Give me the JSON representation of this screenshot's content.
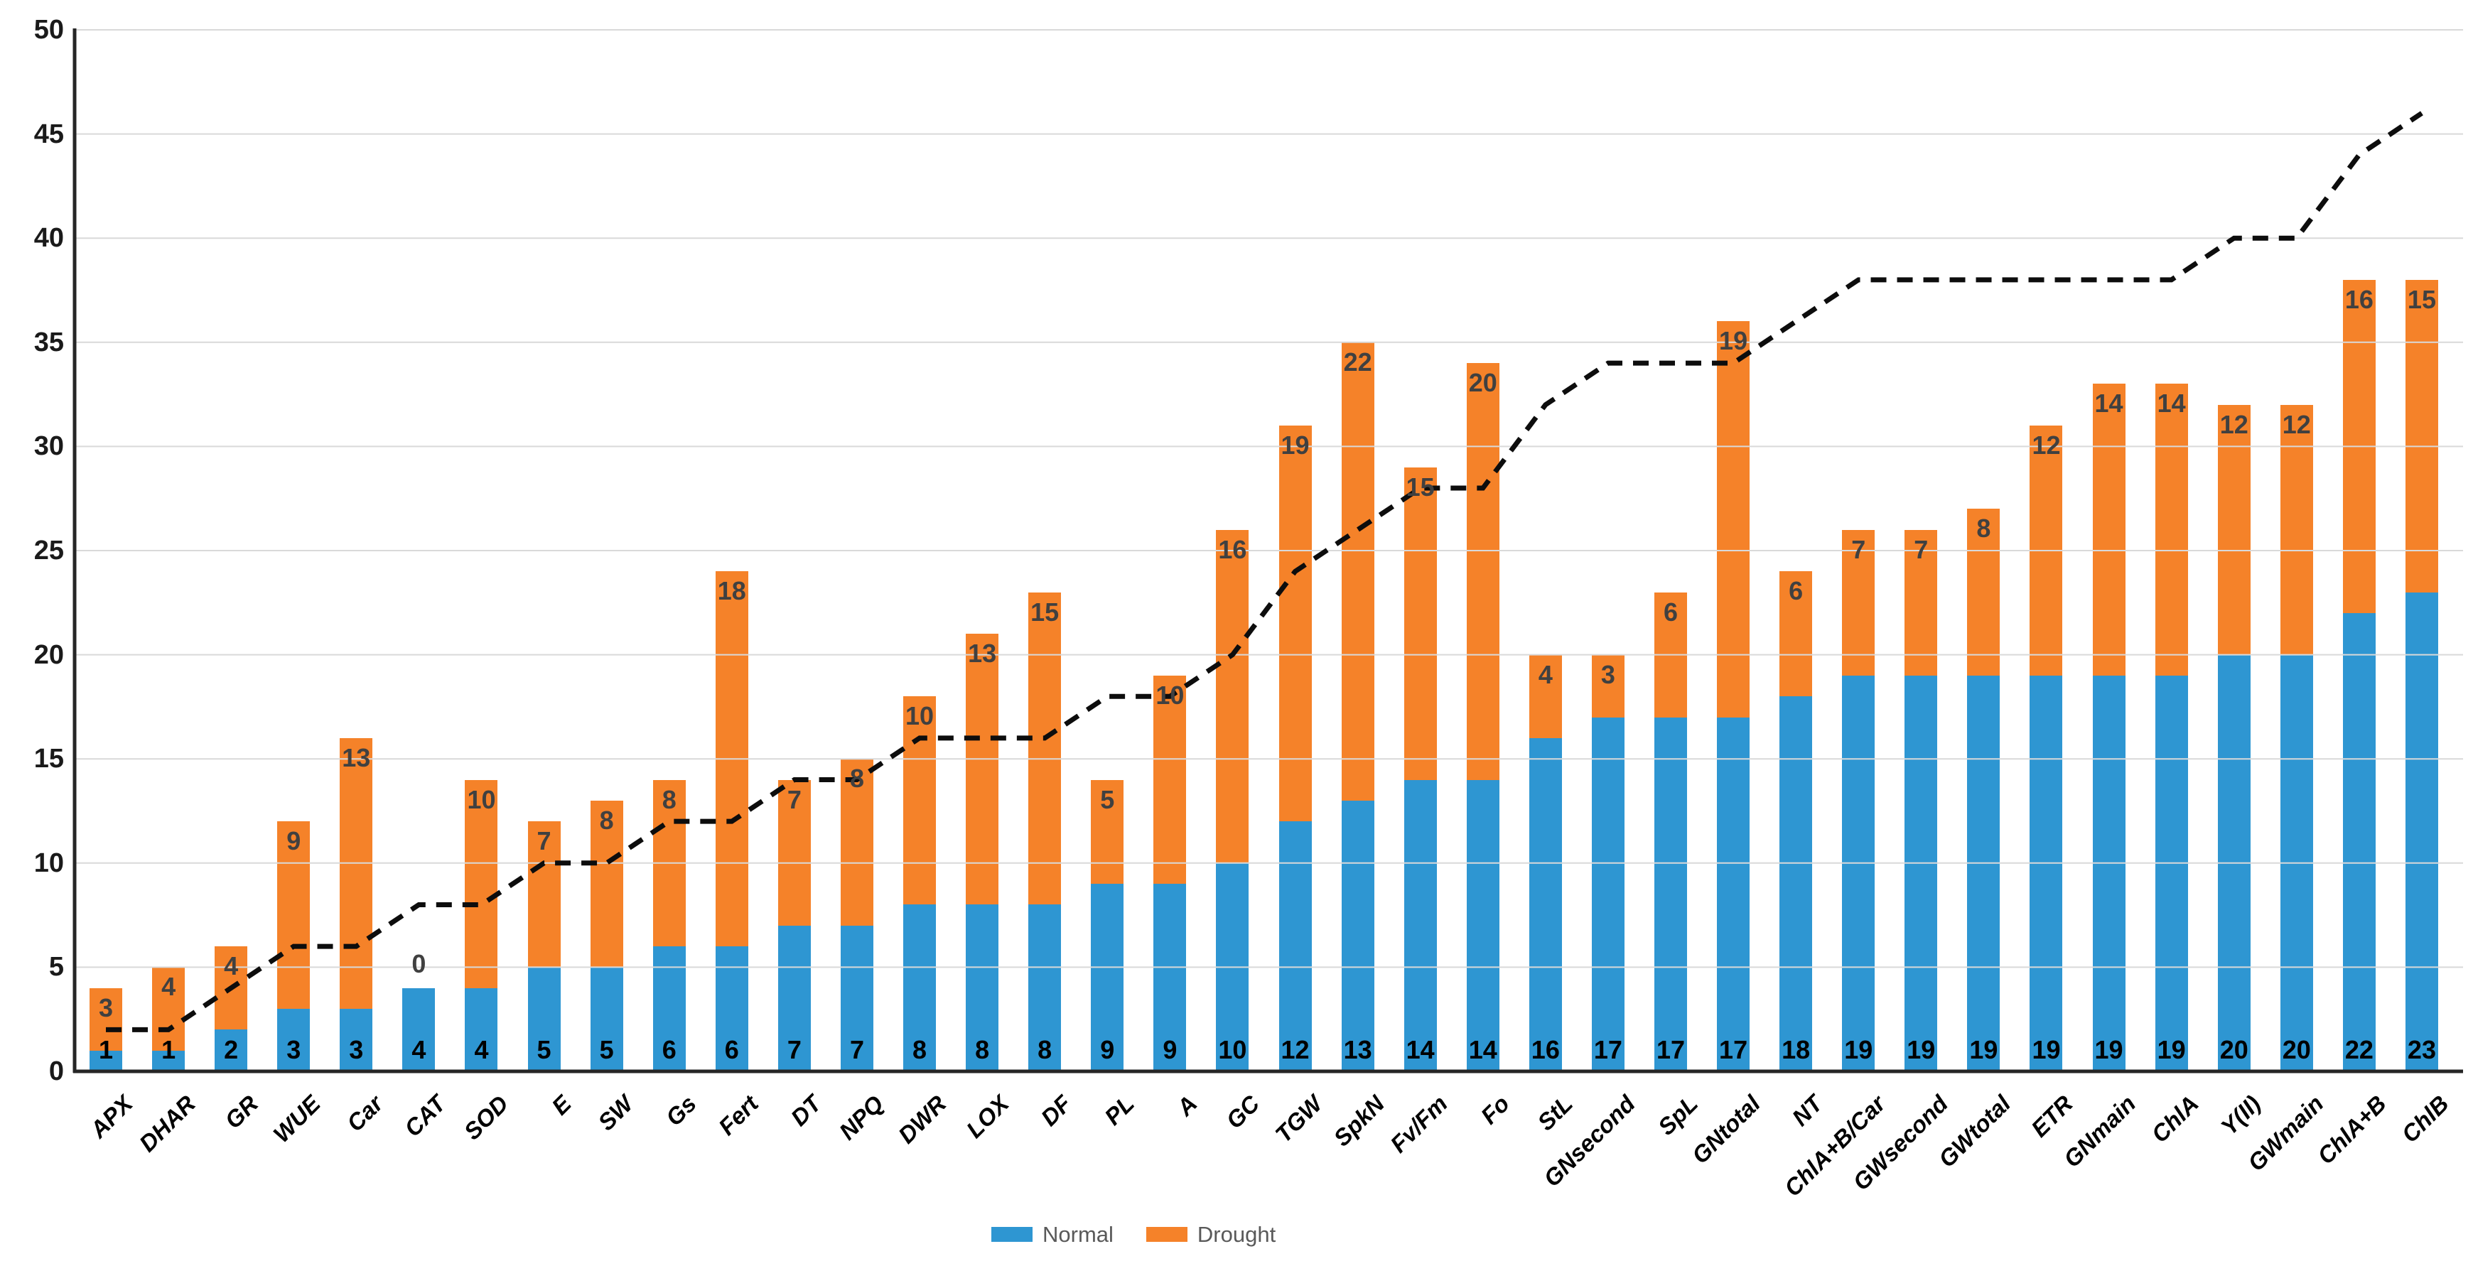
{
  "chart_data": {
    "type": "bar",
    "stacked": true,
    "title": "",
    "xlabel": "",
    "ylabel": "",
    "ylim": [
      0,
      50
    ],
    "yticks": [
      0,
      5,
      10,
      15,
      20,
      25,
      30,
      35,
      40,
      45,
      50
    ],
    "grid": true,
    "legend_position": "bottom",
    "categories": [
      "APX",
      "DHAR",
      "GR",
      "WUE",
      "Car",
      "CAT",
      "SOD",
      "E",
      "SW",
      "Gs",
      "Fert",
      "DT",
      "NPQ",
      "DWR",
      "LOX",
      "DF",
      "PL",
      "A",
      "GC",
      "TGW",
      "SpkN",
      "Fv/Fm",
      "Fo",
      "StL",
      "GNsecond",
      "SpL",
      "GNtotal",
      "NT",
      "ChlA+B/Car",
      "GWsecond",
      "GWtotal",
      "ETR",
      "GNmain",
      "ChlA",
      "Y(II)",
      "GWmain",
      "ChlA+B",
      "ChlB"
    ],
    "series": [
      {
        "name": "Normal",
        "color": "#2E96D2",
        "values": [
          1,
          1,
          2,
          3,
          3,
          4,
          4,
          5,
          5,
          6,
          6,
          7,
          7,
          8,
          8,
          8,
          9,
          9,
          10,
          12,
          13,
          14,
          14,
          16,
          17,
          17,
          17,
          18,
          19,
          19,
          19,
          19,
          19,
          19,
          20,
          20,
          22,
          23
        ]
      },
      {
        "name": "Drought",
        "color": "#F58229",
        "values": [
          3,
          4,
          4,
          9,
          13,
          0,
          10,
          7,
          8,
          8,
          18,
          7,
          8,
          10,
          13,
          15,
          5,
          10,
          16,
          19,
          22,
          15,
          20,
          4,
          3,
          6,
          19,
          6,
          7,
          7,
          8,
          12,
          14,
          14,
          12,
          12,
          16,
          15
        ]
      }
    ],
    "line_series": {
      "name": "cumulative-line",
      "style": "dashed",
      "color": "#0d0d0d",
      "values": [
        2,
        2,
        4,
        6,
        6,
        8,
        8,
        10,
        10,
        12,
        12,
        14,
        14,
        16,
        16,
        16,
        18,
        18,
        20,
        24,
        26,
        28,
        28,
        32,
        34,
        34,
        34,
        36,
        38,
        38,
        38,
        38,
        38,
        38,
        40,
        40,
        44,
        46
      ]
    }
  },
  "legend": {
    "items": [
      {
        "label": "Normal",
        "color": "#2E96D2"
      },
      {
        "label": "Drought",
        "color": "#F58229"
      }
    ]
  },
  "style_colors": {
    "grid": "#D9D9D9",
    "axis": "#262626",
    "normal_label": "#000000",
    "drought_label": "#404040",
    "legend_text": "#595959"
  }
}
